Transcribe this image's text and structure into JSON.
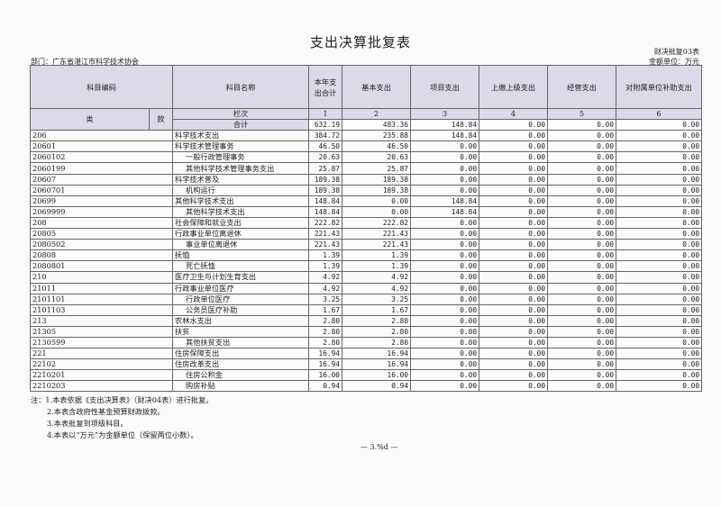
{
  "title": "支出决算批复表",
  "form_no": "财决批复03表",
  "unit": "金额单位：万元",
  "department": "部门：广东省湛江市科学技术协会",
  "headers": {
    "code": "科目编码",
    "name": "科目名称",
    "total": "本年支出合计",
    "basic": "基本支出",
    "project": "项目支出",
    "upper": "上缴上级支出",
    "business": "经营支出",
    "subsidiary": "对附属单位补助支出",
    "lei": "类",
    "kuan": "款",
    "lanci": "栏次",
    "heji": "合计",
    "col_nums": [
      "1",
      "2",
      "3",
      "4",
      "5",
      "6"
    ]
  },
  "totals": [
    "632.19",
    "483.36",
    "148.84",
    "0.00",
    "0.00",
    "0.00"
  ],
  "rows": [
    {
      "code": "206",
      "name": "科学技术支出",
      "level": 1,
      "v": [
        "384.72",
        "235.88",
        "148.84",
        "0.00",
        "0.00",
        "0.00"
      ]
    },
    {
      "code": "20601",
      "name": "科学技术管理事务",
      "level": 2,
      "v": [
        "46.50",
        "46.50",
        "0.00",
        "0.00",
        "0.00",
        "0.00"
      ]
    },
    {
      "code": "2060102",
      "name": "一般行政管理事务",
      "level": 3,
      "v": [
        "20.63",
        "20.63",
        "0.00",
        "0.00",
        "0.00",
        "0.00"
      ]
    },
    {
      "code": "2060199",
      "name": "其他科学技术管理事务支出",
      "level": 3,
      "v": [
        "25.87",
        "25.87",
        "0.00",
        "0.00",
        "0.00",
        "0.00"
      ]
    },
    {
      "code": "20607",
      "name": "科学技术普及",
      "level": 2,
      "v": [
        "189.38",
        "189.38",
        "0.00",
        "0.00",
        "0.00",
        "0.00"
      ]
    },
    {
      "code": "2060701",
      "name": "机构运行",
      "level": 3,
      "v": [
        "189.38",
        "189.38",
        "0.00",
        "0.00",
        "0.00",
        "0.00"
      ]
    },
    {
      "code": "20699",
      "name": "其他科学技术支出",
      "level": 2,
      "v": [
        "148.84",
        "0.00",
        "148.84",
        "0.00",
        "0.00",
        "0.00"
      ]
    },
    {
      "code": "2069999",
      "name": "其他科学技术支出",
      "level": 3,
      "v": [
        "148.84",
        "0.00",
        "148.84",
        "0.00",
        "0.00",
        "0.00"
      ]
    },
    {
      "code": "208",
      "name": "社会保障和就业支出",
      "level": 1,
      "v": [
        "222.82",
        "222.82",
        "0.00",
        "0.00",
        "0.00",
        "0.00"
      ]
    },
    {
      "code": "20805",
      "name": "行政事业单位离退休",
      "level": 2,
      "v": [
        "221.43",
        "221.43",
        "0.00",
        "0.00",
        "0.00",
        "0.00"
      ]
    },
    {
      "code": "2080502",
      "name": "事业单位离退休",
      "level": 3,
      "v": [
        "221.43",
        "221.43",
        "0.00",
        "0.00",
        "0.00",
        "0.00"
      ]
    },
    {
      "code": "20808",
      "name": "抚恤",
      "level": 2,
      "v": [
        "1.39",
        "1.39",
        "0.00",
        "0.00",
        "0.00",
        "0.00"
      ]
    },
    {
      "code": "2080801",
      "name": "死亡抚恤",
      "level": 3,
      "v": [
        "1.39",
        "1.39",
        "0.00",
        "0.00",
        "0.00",
        "0.00"
      ]
    },
    {
      "code": "210",
      "name": "医疗卫生与计划生育支出",
      "level": 1,
      "v": [
        "4.92",
        "4.92",
        "0.00",
        "0.00",
        "0.00",
        "0.00"
      ]
    },
    {
      "code": "21011",
      "name": "行政事业单位医疗",
      "level": 2,
      "v": [
        "4.92",
        "4.92",
        "0.00",
        "0.00",
        "0.00",
        "0.00"
      ]
    },
    {
      "code": "2101101",
      "name": "行政单位医疗",
      "level": 3,
      "v": [
        "3.25",
        "3.25",
        "0.00",
        "0.00",
        "0.00",
        "0.00"
      ]
    },
    {
      "code": "2101103",
      "name": "公务员医疗补助",
      "level": 3,
      "v": [
        "1.67",
        "1.67",
        "0.00",
        "0.00",
        "0.00",
        "0.00"
      ]
    },
    {
      "code": "213",
      "name": "农林水支出",
      "level": 1,
      "v": [
        "2.80",
        "2.80",
        "0.00",
        "0.00",
        "0.00",
        "0.00"
      ]
    },
    {
      "code": "21305",
      "name": "扶贫",
      "level": 2,
      "v": [
        "2.80",
        "2.80",
        "0.00",
        "0.00",
        "0.00",
        "0.00"
      ]
    },
    {
      "code": "2130599",
      "name": "其他扶贫支出",
      "level": 3,
      "v": [
        "2.80",
        "2.80",
        "0.00",
        "0.00",
        "0.00",
        "0.00"
      ]
    },
    {
      "code": "221",
      "name": "住房保障支出",
      "level": 1,
      "v": [
        "16.94",
        "16.94",
        "0.00",
        "0.00",
        "0.00",
        "0.00"
      ]
    },
    {
      "code": "22102",
      "name": "住房改革支出",
      "level": 2,
      "v": [
        "16.94",
        "16.94",
        "0.00",
        "0.00",
        "0.00",
        "0.00"
      ]
    },
    {
      "code": "2210201",
      "name": "住房公积金",
      "level": 3,
      "v": [
        "16.00",
        "16.00",
        "0.00",
        "0.00",
        "0.00",
        "0.00"
      ]
    },
    {
      "code": "2210203",
      "name": "购房补贴",
      "level": 3,
      "v": [
        "0.94",
        "0.94",
        "0.00",
        "0.00",
        "0.00",
        "0.00"
      ]
    }
  ],
  "notes": [
    "注：1.本表依据《支出决算表》（财决04表）进行批复。",
    "2.本表含政府性基金预算财政拨款。",
    "3.本表批复到项级科目。",
    "4.本表以“万元”为金额单位（保留两位小数）。"
  ],
  "page_marker": "— 3.%d —"
}
